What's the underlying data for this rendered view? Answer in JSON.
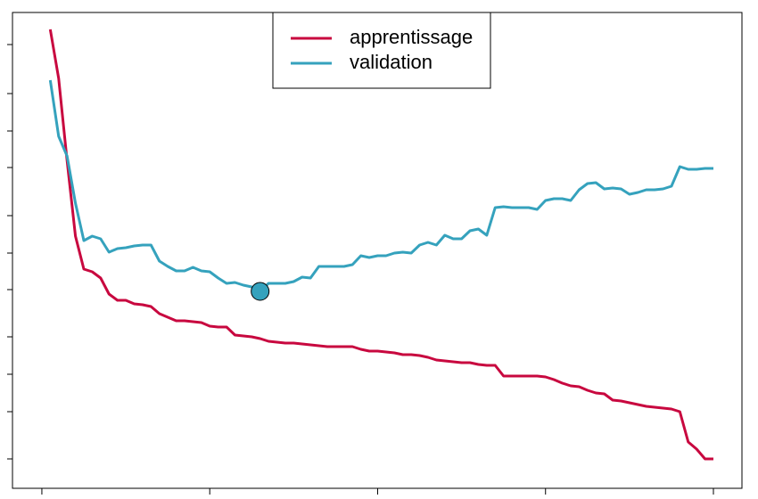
{
  "chart_data": {
    "type": "line",
    "x": [
      1,
      2,
      3,
      4,
      5,
      6,
      7,
      8,
      9,
      10,
      11,
      12,
      13,
      14,
      15,
      16,
      17,
      18,
      19,
      20,
      21,
      22,
      23,
      24,
      25,
      26,
      27,
      28,
      29,
      30,
      31,
      32,
      33,
      34,
      35,
      36,
      37,
      38,
      39,
      40,
      41,
      42,
      43,
      44,
      45,
      46,
      47,
      48,
      49,
      50,
      51,
      52,
      53,
      54,
      55,
      56,
      57,
      58,
      59,
      60,
      61,
      62,
      63,
      64,
      65,
      66,
      67,
      68,
      69,
      70,
      71,
      72,
      73,
      74,
      75,
      76,
      77,
      78,
      79,
      80
    ],
    "series": [
      {
        "name": "apprentissage",
        "color": "#c8083f",
        "values": [
          515,
          460,
          368,
          283,
          246,
          243,
          236,
          218,
          211,
          211,
          207,
          206,
          204,
          196,
          192,
          188,
          188,
          187,
          186,
          182,
          181,
          181,
          172,
          171,
          170,
          168,
          165,
          164,
          163,
          163,
          162,
          161,
          160,
          159,
          159,
          159,
          159,
          156,
          154,
          154,
          153,
          152,
          150,
          150,
          149,
          147,
          144,
          143,
          142,
          141,
          141,
          139,
          138,
          138,
          126,
          126,
          126,
          126,
          126,
          125,
          122,
          118,
          115,
          114,
          110,
          107,
          106,
          99,
          98,
          96,
          94,
          92,
          91,
          90,
          89,
          86,
          52,
          44,
          33,
          33
        ]
      },
      {
        "name": "validation",
        "color": "#35a2bd",
        "values": [
          458,
          395,
          373,
          320,
          278,
          283,
          280,
          265,
          269,
          270,
          272,
          273,
          273,
          255,
          249,
          244,
          244,
          248,
          244,
          243,
          236,
          230,
          231,
          228,
          226,
          221,
          230,
          230,
          230,
          232,
          237,
          236,
          249,
          249,
          249,
          249,
          251,
          261,
          259,
          261,
          261,
          264,
          265,
          264,
          273,
          276,
          273,
          284,
          280,
          280,
          289,
          291,
          284,
          315,
          316,
          315,
          315,
          315,
          313,
          323,
          325,
          325,
          323,
          335,
          342,
          343,
          336,
          337,
          336,
          330,
          332,
          335,
          335,
          336,
          339,
          361,
          358,
          358,
          359,
          359
        ]
      }
    ],
    "xlim": [
      -3.5,
      83.4
    ],
    "xticks": [
      0,
      20,
      40,
      60,
      80
    ],
    "ylim": [
      0,
      534
    ],
    "yticks": [
      33,
      86,
      128,
      170,
      223,
      264,
      306,
      360,
      401,
      443,
      498
    ],
    "legend": "top",
    "min_marker": true
  }
}
